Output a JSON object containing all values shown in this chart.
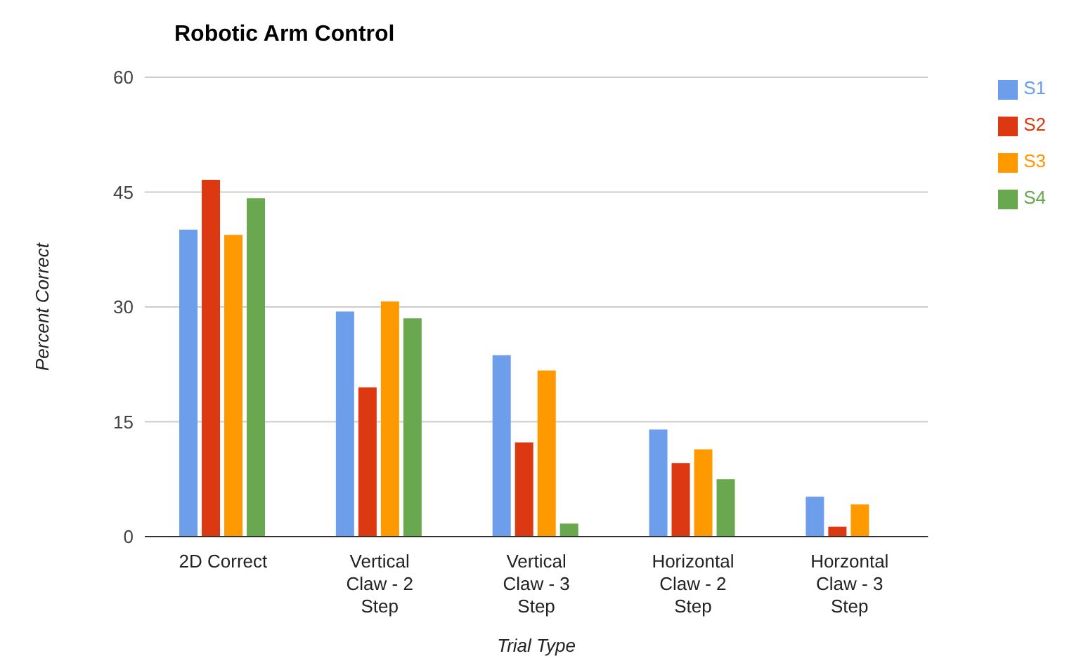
{
  "chart_data": {
    "type": "bar",
    "title": "Robotic Arm Control",
    "xlabel": "Trial Type",
    "ylabel": "Percent Correct",
    "categories": [
      "2D Correct",
      "Vertical Claw - 2 Step",
      "Vertical Claw - 3 Step",
      "Horizontal Claw - 2 Step",
      "Horzontal Claw - 3 Step"
    ],
    "series": [
      {
        "name": "S1",
        "color": "#6d9eeb",
        "values": [
          40.1,
          29.4,
          23.7,
          14.0,
          5.2
        ]
      },
      {
        "name": "S2",
        "color": "#dc3912",
        "values": [
          46.6,
          19.5,
          12.3,
          9.6,
          1.3
        ]
      },
      {
        "name": "S3",
        "color": "#ff9900",
        "values": [
          39.4,
          30.7,
          21.7,
          11.4,
          4.2
        ]
      },
      {
        "name": "S4",
        "color": "#6aa84f",
        "values": [
          44.2,
          28.5,
          1.7,
          7.5,
          0
        ]
      }
    ],
    "ylim": [
      0,
      60
    ],
    "yticks": [
      0,
      15,
      30,
      45,
      60
    ],
    "grid": "y",
    "legend": "top right"
  }
}
